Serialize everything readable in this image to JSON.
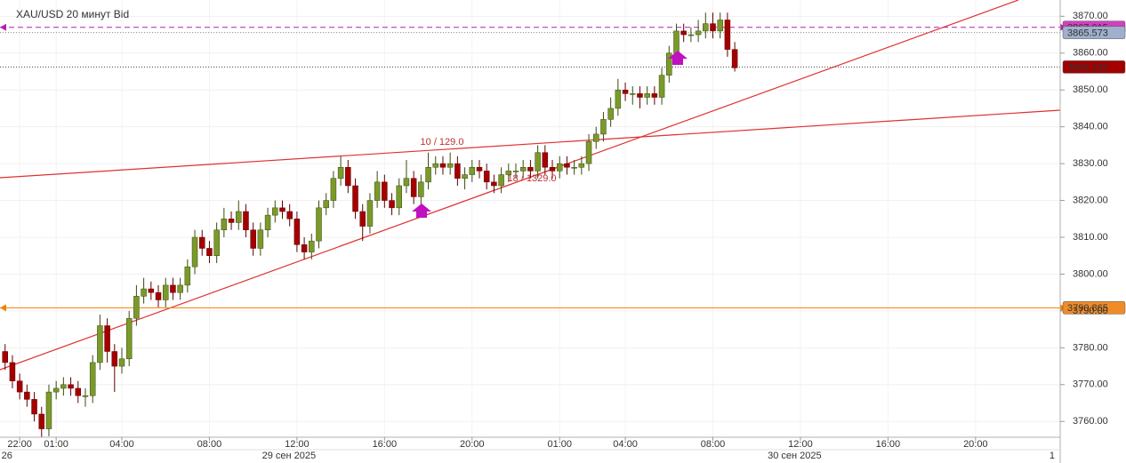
{
  "chart_data": {
    "type": "candlestick",
    "title": "XAU/USD  20 минут Bid",
    "up_color": "#7a9a2a",
    "down_color": "#a40000",
    "open": [
      3779,
      3776,
      3771,
      3768,
      3766,
      3762,
      3758,
      3768,
      3769,
      3770,
      3769,
      3767,
      3767,
      3776,
      3786,
      3779,
      3775,
      3777,
      3788,
      3794,
      3796,
      3795,
      3793,
      3797,
      3795,
      3797,
      3802,
      3810,
      3807,
      3805,
      3812,
      3815,
      3814,
      3817,
      3812,
      3807,
      3812,
      3816,
      3818,
      3817,
      3815,
      3808,
      3806,
      3809,
      3818,
      3820,
      3826,
      3829,
      3824,
      3817,
      3813,
      3820,
      3825,
      3820,
      3818,
      3824,
      3826,
      3821,
      3825,
      3829,
      3830,
      3829,
      3830,
      3826,
      3827,
      3829,
      3828,
      3825,
      3824,
      3827,
      3828,
      3828,
      3829,
      3828,
      3833,
      3829,
      3828,
      3830,
      3829,
      3829,
      3830,
      3836,
      3838,
      3842,
      3845,
      3850,
      3849,
      3849,
      3848,
      3849,
      3848,
      3854,
      3860,
      3866,
      3865,
      3865,
      3866,
      3868,
      3866,
      3869,
      3861
    ],
    "high": [
      3781,
      3778,
      3773,
      3770,
      3768,
      3764,
      3770,
      3771,
      3772,
      3772,
      3771,
      3769,
      3778,
      3789,
      3788,
      3781,
      3780,
      3790,
      3797,
      3799,
      3798,
      3797,
      3799,
      3799,
      3799,
      3804,
      3812,
      3812,
      3809,
      3814,
      3818,
      3817,
      3820,
      3819,
      3814,
      3814,
      3818,
      3820,
      3820,
      3819,
      3817,
      3810,
      3811,
      3820,
      3822,
      3828,
      3832,
      3831,
      3826,
      3819,
      3822,
      3828,
      3827,
      3822,
      3826,
      3831,
      3828,
      3827,
      3833,
      3832,
      3832,
      3833,
      3832,
      3829,
      3831,
      3831,
      3830,
      3827,
      3829,
      3830,
      3830,
      3831,
      3831,
      3835,
      3835,
      3831,
      3832,
      3832,
      3831,
      3832,
      3838,
      3840,
      3844,
      3848,
      3853,
      3852,
      3851,
      3851,
      3851,
      3851,
      3856,
      3862,
      3868,
      3868,
      3867,
      3869,
      3871,
      3871,
      3871,
      3871,
      3863
    ],
    "low": [
      3774,
      3769,
      3766,
      3764,
      3760,
      3755,
      3756,
      3766,
      3767,
      3767,
      3765,
      3764,
      3765,
      3774,
      3776,
      3768,
      3773,
      3775,
      3786,
      3792,
      3793,
      3791,
      3791,
      3793,
      3793,
      3795,
      3800,
      3805,
      3803,
      3803,
      3810,
      3812,
      3812,
      3810,
      3805,
      3805,
      3810,
      3814,
      3815,
      3813,
      3806,
      3804,
      3804,
      3807,
      3816,
      3818,
      3824,
      3822,
      3815,
      3809,
      3811,
      3818,
      3818,
      3816,
      3816,
      3822,
      3819,
      3819,
      3823,
      3827,
      3827,
      3827,
      3824,
      3823,
      3825,
      3826,
      3823,
      3822,
      3822,
      3825,
      3826,
      3826,
      3826,
      3826,
      3827,
      3826,
      3826,
      3827,
      3827,
      3827,
      3828,
      3834,
      3836,
      3840,
      3843,
      3847,
      3846,
      3845,
      3846,
      3846,
      3846,
      3852,
      3858,
      3863,
      3863,
      3863,
      3864,
      3864,
      3864,
      3859,
      3855
    ],
    "close": [
      3776,
      3771,
      3768,
      3766,
      3762,
      3758,
      3768,
      3769,
      3770,
      3769,
      3767,
      3767,
      3776,
      3786,
      3779,
      3775,
      3777,
      3788,
      3794,
      3796,
      3795,
      3793,
      3797,
      3795,
      3797,
      3802,
      3810,
      3807,
      3805,
      3812,
      3815,
      3814,
      3817,
      3812,
      3807,
      3812,
      3816,
      3818,
      3817,
      3815,
      3808,
      3806,
      3809,
      3818,
      3820,
      3826,
      3829,
      3824,
      3817,
      3813,
      3820,
      3825,
      3820,
      3818,
      3824,
      3826,
      3821,
      3825,
      3829,
      3830,
      3829,
      3830,
      3826,
      3827,
      3829,
      3828,
      3825,
      3824,
      3827,
      3828,
      3828,
      3829,
      3828,
      3833,
      3829,
      3828,
      3830,
      3829,
      3829,
      3830,
      3836,
      3838,
      3842,
      3845,
      3850,
      3849,
      3849,
      3848,
      3849,
      3848,
      3854,
      3860,
      3866,
      3865,
      3865,
      3866,
      3868,
      3866,
      3869,
      3861,
      3856
    ],
    "xlim": [
      -0.7,
      144.6
    ],
    "xticks": [
      {
        "value": 2,
        "label": "22:00"
      },
      {
        "value": 7,
        "label": "01:00"
      },
      {
        "value": 16,
        "label": "04:00"
      },
      {
        "value": 28,
        "label": "08:00"
      },
      {
        "value": 40,
        "label": "12:00"
      },
      {
        "value": 52,
        "label": "16:00"
      },
      {
        "value": 64,
        "label": "20:00"
      },
      {
        "value": 76,
        "label": "01:00"
      },
      {
        "value": 85,
        "label": "04:00"
      },
      {
        "value": 97,
        "label": "08:00"
      },
      {
        "value": 109,
        "label": "12:00"
      },
      {
        "value": 121,
        "label": "16:00"
      },
      {
        "value": 133,
        "label": "20:00"
      }
    ],
    "date_ticks": [
      {
        "value": 0.25,
        "label": "26"
      },
      {
        "value": 38.9,
        "label": "29 сен 2025"
      },
      {
        "value": 108.2,
        "label": "30 сен 2025"
      },
      {
        "value": 143.5,
        "label": "1"
      }
    ],
    "ylim": [
      3755.72,
      3874.42
    ],
    "yticks": [
      {
        "value": 3760,
        "label": "3760.00"
      },
      {
        "value": 3770,
        "label": "3770.00"
      },
      {
        "value": 3780,
        "label": "3780.00"
      },
      {
        "value": 3790,
        "label": "3790.00"
      },
      {
        "value": 3800,
        "label": "3800.00"
      },
      {
        "value": 3810,
        "label": "3810.00"
      },
      {
        "value": 3820,
        "label": "3820.00"
      },
      {
        "value": 3830,
        "label": "3830.00"
      },
      {
        "value": 3840,
        "label": "3840.00"
      },
      {
        "value": 3850,
        "label": "3850.00"
      },
      {
        "value": 3860,
        "label": "3860.00"
      },
      {
        "value": 3870,
        "label": "3870.00"
      }
    ],
    "price_lines": [
      {
        "value": 3867.015,
        "color": "#b020b0",
        "style": "dashed",
        "label_bg": "#d040c0"
      },
      {
        "value": 3865.573,
        "color": "#888888",
        "style": "dotted",
        "label_bg": "#9fb0cc"
      },
      {
        "value": 3856.235,
        "color": "#444444",
        "style": "dotted",
        "label_bg": "#a40000"
      },
      {
        "value": 3790.865,
        "color": "#f08000",
        "style": "solid",
        "label_bg": "#f08c28"
      }
    ],
    "annotations": [
      "10 / 129.0",
      "18 / 1329.0"
    ]
  }
}
